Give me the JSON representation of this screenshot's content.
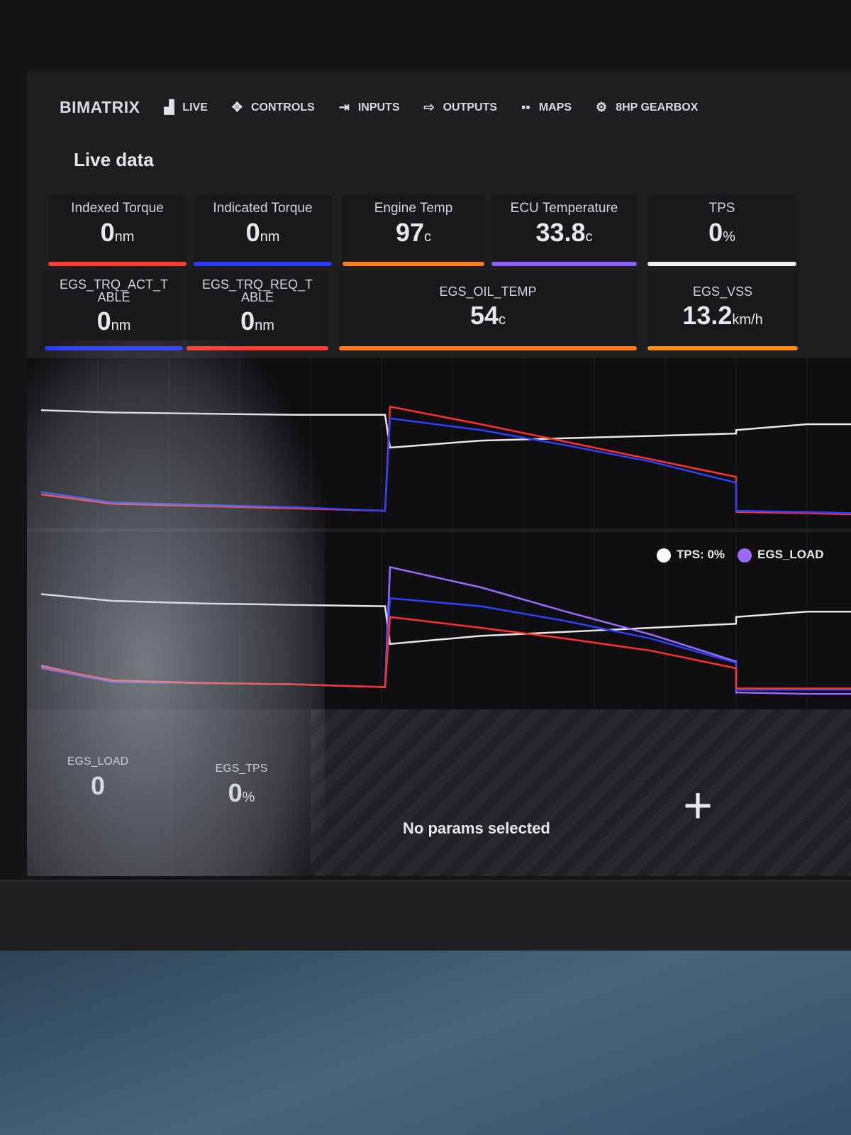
{
  "nav": {
    "brand": "BIMATRIX",
    "items": [
      {
        "label": "LIVE",
        "icon": "chart-bars-icon"
      },
      {
        "label": "CONTROLS",
        "icon": "dpad-icon"
      },
      {
        "label": "INPUTS",
        "icon": "login-icon"
      },
      {
        "label": "OUTPUTS",
        "icon": "logout-icon"
      },
      {
        "label": "MAPS",
        "icon": "grid-icon"
      },
      {
        "label": "8HP GEARBOX",
        "icon": "gearbox-icon"
      }
    ]
  },
  "page_title": "Live data",
  "cards_row1": [
    {
      "label": "Indexed Torque",
      "value": "0",
      "unit": "nm",
      "color": "#ff3b30"
    },
    {
      "label": "Indicated Torque",
      "value": "0",
      "unit": "nm",
      "color": "#2a3bff"
    },
    {
      "label": "Engine Temp",
      "value": "97",
      "unit": "c",
      "color": "#ff7a1a"
    },
    {
      "label": "ECU Temperature",
      "value": "33.8",
      "unit": "c",
      "color": "#8f5cff"
    },
    {
      "label": "TPS",
      "value": "0",
      "unit": "%",
      "color": "#f0f0f0"
    }
  ],
  "cards_row2": [
    {
      "label": "EGS_TRQ_ACT_TABLE",
      "value": "0",
      "unit": "nm",
      "color": "#2a3bff"
    },
    {
      "label": "EGS_TRQ_REQ_TABLE",
      "value": "0",
      "unit": "nm",
      "color": "#ff3b30"
    },
    {
      "label": "EGS_OIL_TEMP",
      "value": "54",
      "unit": "c",
      "color": "#ff7a1a"
    },
    {
      "label": "EGS_VSS",
      "value": "13.2",
      "unit": "km/h",
      "color": "#ff8a1a"
    }
  ],
  "chart_data": [
    {
      "type": "line",
      "series": [
        {
          "color": "#e8e8e8",
          "values": [
            92,
            90,
            89,
            88,
            88,
            60,
            66,
            68,
            70,
            72,
            75,
            80,
            80
          ]
        },
        {
          "color": "#ff3030",
          "values": [
            20,
            12,
            10,
            8,
            6,
            95,
            80,
            65,
            50,
            35,
            5,
            4,
            3
          ]
        },
        {
          "color": "#3040ff",
          "values": [
            22,
            13,
            11,
            9,
            6,
            85,
            75,
            62,
            48,
            30,
            6,
            5,
            4
          ]
        }
      ]
    },
    {
      "type": "line",
      "legend": [
        {
          "label": "TPS: 0%",
          "color": "#ffffff"
        },
        {
          "label": "EGS_LOAD",
          "color": "#9b6bff"
        }
      ],
      "series": [
        {
          "color": "#e8e8e8",
          "values": [
            75,
            70,
            68,
            67,
            66,
            38,
            44,
            47,
            50,
            53,
            58,
            62,
            62
          ]
        },
        {
          "color": "#9b6bff",
          "values": [
            22,
            10,
            9,
            8,
            6,
            95,
            80,
            62,
            45,
            25,
            2,
            1,
            1
          ]
        },
        {
          "color": "#3040ff",
          "values": [
            20,
            10,
            9,
            8,
            6,
            72,
            66,
            55,
            42,
            24,
            4,
            4,
            4
          ]
        },
        {
          "color": "#ff3030",
          "values": [
            21,
            11,
            9,
            8,
            6,
            58,
            50,
            42,
            33,
            20,
            5,
            5,
            5
          ]
        }
      ]
    }
  ],
  "bottom": [
    {
      "label": "EGS_LOAD",
      "value": "0",
      "unit": ""
    },
    {
      "label": "EGS_TPS",
      "value": "0",
      "unit": "%"
    }
  ],
  "empty_panel": {
    "text": "No params selected",
    "add": "+"
  }
}
